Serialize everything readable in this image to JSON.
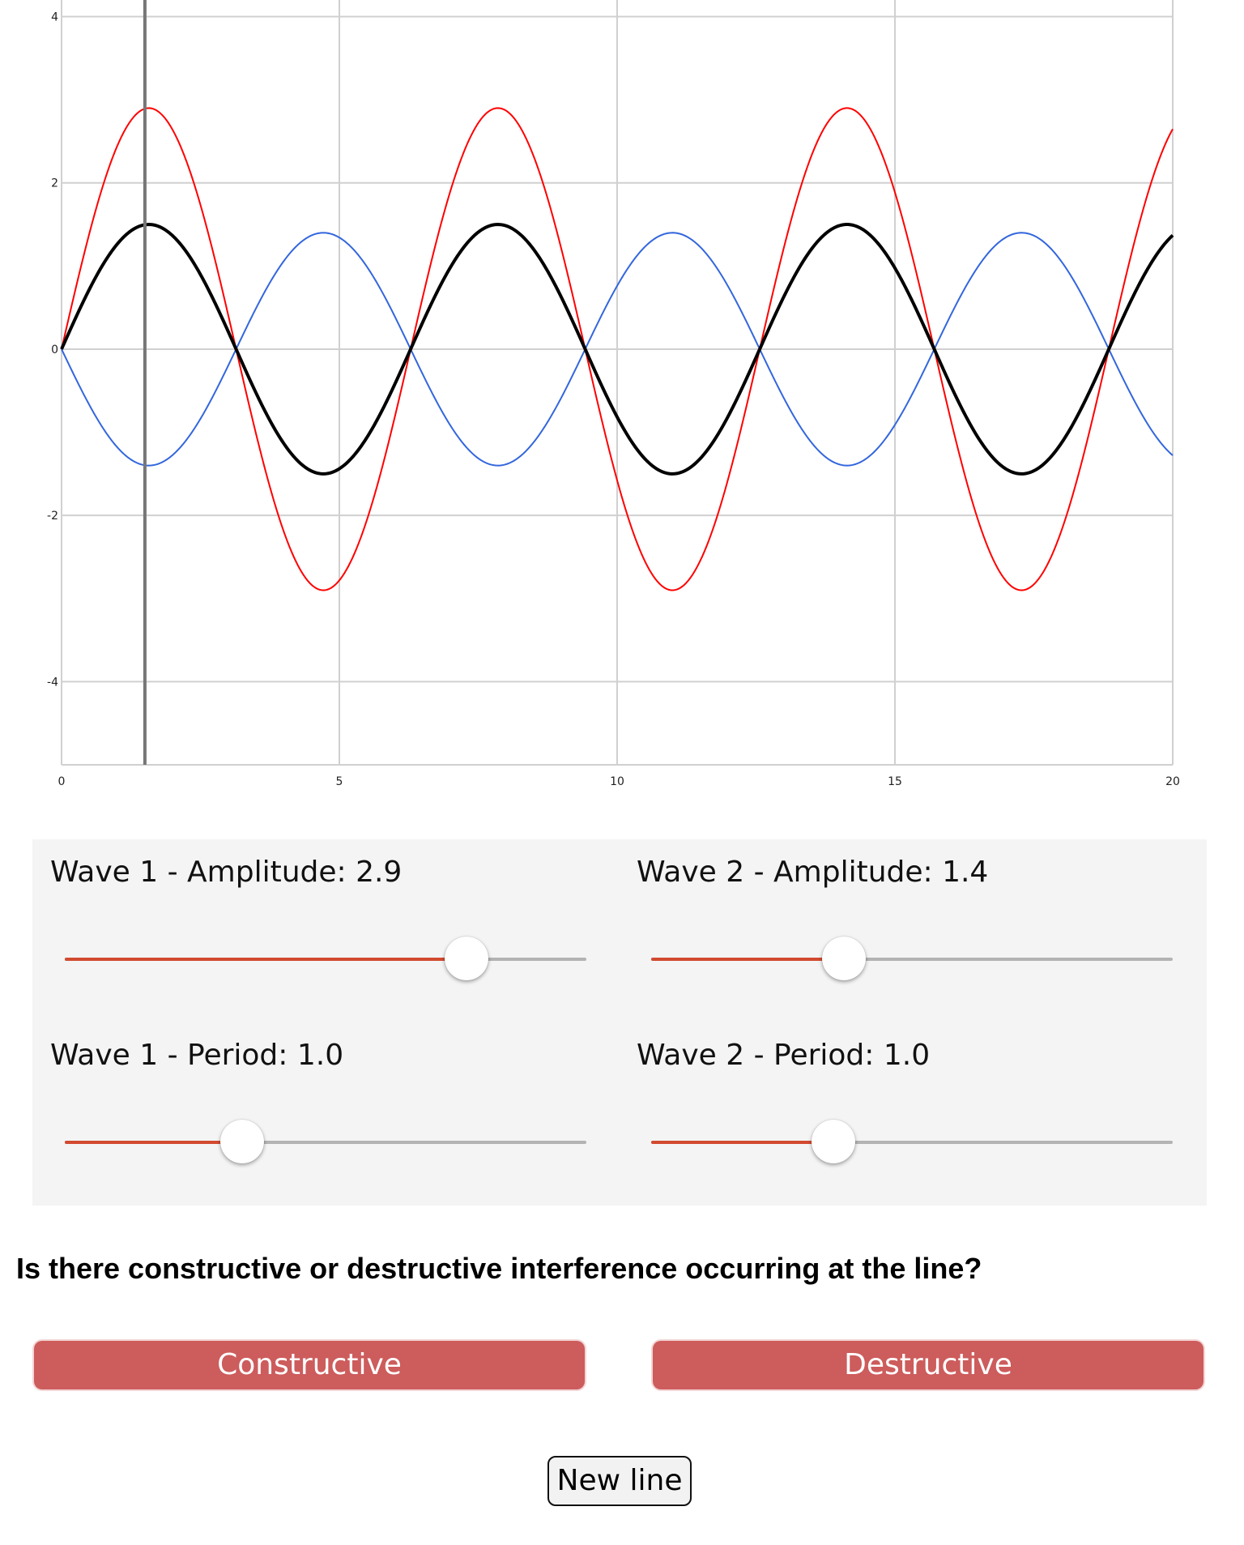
{
  "chart_data": {
    "type": "line",
    "x_ticks": [
      0,
      5,
      10,
      15,
      20
    ],
    "y_ticks": [
      4,
      2,
      0,
      -2,
      -4
    ],
    "xlim": [
      0,
      20
    ],
    "ylim": [
      -5,
      4.2
    ],
    "grid": true,
    "marker_line_x": 1.5,
    "series": [
      {
        "amplitude": 2.9,
        "period": 1.0,
        "sign": 1,
        "color": "#ff0000"
      },
      {
        "amplitude": 1.4,
        "period": 1.0,
        "sign": -1,
        "color": "#3366dd"
      },
      {
        "role": "sum",
        "color": "#000000"
      }
    ]
  },
  "controls": {
    "wave1_amplitude": {
      "label": "Wave 1 - Amplitude: 2.9",
      "value": 2.9,
      "fraction": 0.77
    },
    "wave2_amplitude": {
      "label": "Wave 2 - Amplitude: 1.4",
      "value": 1.4,
      "fraction": 0.37
    },
    "wave1_period": {
      "label": "Wave 1 - Period: 1.0",
      "value": 1.0,
      "fraction": 0.34
    },
    "wave2_period": {
      "label": "Wave 2 - Period: 1.0",
      "value": 1.0,
      "fraction": 0.35
    }
  },
  "question": "Is there constructive or destructive interference occurring at the line?",
  "buttons": {
    "constructive": "Constructive",
    "destructive": "Destructive",
    "new_line": "New line"
  },
  "colors": {
    "slider_fill": "#d24a2f",
    "answer_button": "#cd5c5c"
  }
}
